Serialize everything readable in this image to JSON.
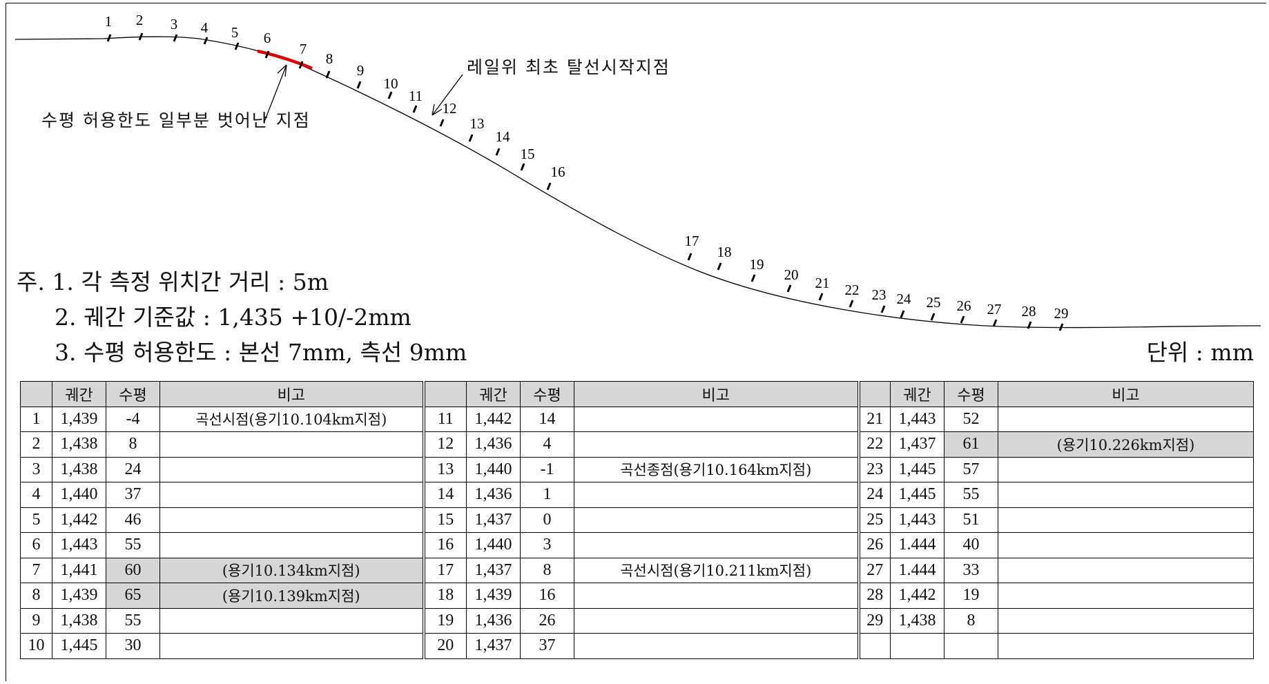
{
  "annotations": {
    "horizontal_deviation": "수평 허용한도 일부분 벗어난 지점",
    "derail_start": "레일위 최초 탈선시작지점"
  },
  "points": [
    "1",
    "2",
    "3",
    "4",
    "5",
    "6",
    "7",
    "8",
    "9",
    "10",
    "11",
    "12",
    "13",
    "14",
    "15",
    "16",
    "17",
    "18",
    "19",
    "20",
    "21",
    "22",
    "23",
    "24",
    "25",
    "26",
    "27",
    "28",
    "29"
  ],
  "notes": {
    "line1": "주. 1. 각 측정 위치간 거리 : 5m",
    "line2": "2. 궤간 기준값 : 1,435 +10/-2mm",
    "line3": "3. 수평 허용한도 : 본선 7mm, 측선 9mm"
  },
  "unit": "단위 : mm",
  "colors": {
    "highlight_line": "#e00000",
    "shade": "#d6d6d6",
    "line": "#000000"
  },
  "table": {
    "headers": {
      "gauge": "궤간",
      "level": "수평",
      "remark": "비고"
    },
    "rows": [
      [
        {
          "no": "1",
          "gauge": "1,439",
          "level": "-4",
          "remark": "곡선시점(용기10.104km지점)"
        },
        {
          "no": "11",
          "gauge": "1,442",
          "level": "14",
          "remark": ""
        },
        {
          "no": "21",
          "gauge": "1,443",
          "level": "52",
          "remark": ""
        }
      ],
      [
        {
          "no": "2",
          "gauge": "1,438",
          "level": "8",
          "remark": ""
        },
        {
          "no": "12",
          "gauge": "1,436",
          "level": "4",
          "remark": ""
        },
        {
          "no": "22",
          "gauge": "1,437",
          "level": "61",
          "remark": "(용기10.226km지점)",
          "shaded": true
        }
      ],
      [
        {
          "no": "3",
          "gauge": "1,438",
          "level": "24",
          "remark": ""
        },
        {
          "no": "13",
          "gauge": "1,440",
          "level": "-1",
          "remark": "곡선종점(용기10.164km지점)"
        },
        {
          "no": "23",
          "gauge": "1,445",
          "level": "57",
          "remark": ""
        }
      ],
      [
        {
          "no": "4",
          "gauge": "1,440",
          "level": "37",
          "remark": ""
        },
        {
          "no": "14",
          "gauge": "1,436",
          "level": "1",
          "remark": ""
        },
        {
          "no": "24",
          "gauge": "1,445",
          "level": "55",
          "remark": ""
        }
      ],
      [
        {
          "no": "5",
          "gauge": "1,442",
          "level": "46",
          "remark": ""
        },
        {
          "no": "15",
          "gauge": "1,437",
          "level": "0",
          "remark": ""
        },
        {
          "no": "25",
          "gauge": "1,443",
          "level": "51",
          "remark": ""
        }
      ],
      [
        {
          "no": "6",
          "gauge": "1,443",
          "level": "55",
          "remark": ""
        },
        {
          "no": "16",
          "gauge": "1,440",
          "level": "3",
          "remark": ""
        },
        {
          "no": "26",
          "gauge": "1.444",
          "level": "40",
          "remark": ""
        }
      ],
      [
        {
          "no": "7",
          "gauge": "1,441",
          "level": "60",
          "remark": "(용기10.134km지점)",
          "shaded": true
        },
        {
          "no": "17",
          "gauge": "1,437",
          "level": "8",
          "remark": "곡선시점(용기10.211km지점)"
        },
        {
          "no": "27",
          "gauge": "1.444",
          "level": "33",
          "remark": ""
        }
      ],
      [
        {
          "no": "8",
          "gauge": "1,439",
          "level": "65",
          "remark": "(용기10.139km지점)",
          "shaded": true
        },
        {
          "no": "18",
          "gauge": "1,439",
          "level": "16",
          "remark": ""
        },
        {
          "no": "28",
          "gauge": "1,442",
          "level": "19",
          "remark": ""
        }
      ],
      [
        {
          "no": "9",
          "gauge": "1,438",
          "level": "55",
          "remark": ""
        },
        {
          "no": "19",
          "gauge": "1,436",
          "level": "26",
          "remark": ""
        },
        {
          "no": "29",
          "gauge": "1,438",
          "level": "8",
          "remark": ""
        }
      ],
      [
        {
          "no": "10",
          "gauge": "1,445",
          "level": "30",
          "remark": ""
        },
        {
          "no": "20",
          "gauge": "1,437",
          "level": "37",
          "remark": ""
        },
        {
          "no": "",
          "gauge": "",
          "level": "",
          "remark": ""
        }
      ]
    ]
  }
}
